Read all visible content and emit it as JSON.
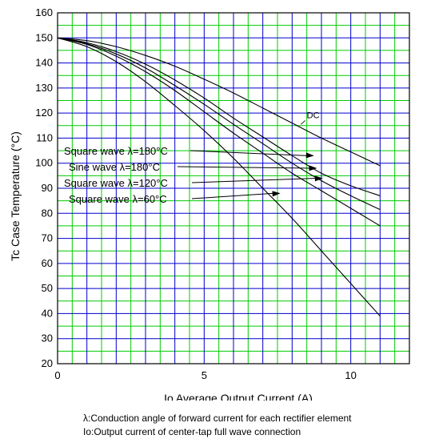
{
  "chart_data": {
    "type": "line",
    "title": "",
    "xlabel": "Io    Average Output Current    (A)",
    "ylabel": "Tc    Case Temperature    (°C)",
    "xlim": [
      0,
      12
    ],
    "ylim": [
      20,
      160
    ],
    "x_ticks": [
      0,
      5,
      10
    ],
    "y_ticks": [
      20,
      30,
      40,
      50,
      60,
      70,
      80,
      90,
      100,
      110,
      120,
      130,
      140,
      150,
      160
    ],
    "grid": {
      "major": true,
      "minor": true,
      "major_color": "#0000cc",
      "minor_color": "#00cc00"
    },
    "series": [
      {
        "name": "DC",
        "x": [
          0,
          1,
          2,
          3,
          4,
          5,
          6,
          7,
          8,
          9,
          10,
          11
        ],
        "y": [
          150,
          148.9,
          146.5,
          143,
          138.7,
          133.5,
          128,
          122,
          116,
          110,
          104.5,
          99
        ]
      },
      {
        "name": "Square wave λ=180°C",
        "x": [
          0,
          1,
          2,
          3,
          4,
          5,
          6,
          7,
          8,
          9,
          10,
          11
        ],
        "y": [
          150,
          148.1,
          144.5,
          139.5,
          133.2,
          126,
          118,
          110.5,
          103,
          96,
          91,
          87
        ]
      },
      {
        "name": "Sine wave λ=180°C",
        "x": [
          0,
          1,
          2,
          3,
          4,
          5,
          6,
          7,
          8,
          9,
          10,
          11
        ],
        "y": [
          150,
          147.7,
          143.6,
          138,
          131,
          123.5,
          115.5,
          107.8,
          100,
          93,
          87,
          81.5
        ]
      },
      {
        "name": "Square wave λ=120°C",
        "x": [
          0,
          1,
          2,
          3,
          4,
          5,
          6,
          7,
          8,
          9,
          10,
          11
        ],
        "y": [
          150,
          147.4,
          142.7,
          136.5,
          129,
          120.5,
          112,
          104,
          96,
          89,
          82,
          75
        ]
      },
      {
        "name": "Square wave λ=60°C",
        "x": [
          0,
          1,
          2,
          3,
          4,
          5,
          6,
          7,
          8,
          9,
          10,
          11
        ],
        "y": [
          150,
          146.5,
          140.5,
          132.5,
          123,
          113,
          102,
          90,
          78,
          65,
          52,
          39
        ]
      }
    ],
    "annotations": [
      {
        "text": "DC",
        "x": 8.5,
        "y": 118
      },
      {
        "text": "Square wave  λ=180°C",
        "arrow_to": [
          8.75,
          103
        ]
      },
      {
        "text": "Sine wave  λ=180°C",
        "arrow_to": [
          8.85,
          98
        ]
      },
      {
        "text": "Square wave  λ=120°C",
        "arrow_to": [
          9.05,
          94
        ]
      },
      {
        "text": "Square wave  λ=60°C",
        "arrow_to": [
          7.6,
          88
        ]
      }
    ]
  },
  "notes": {
    "line1": "λ:Conduction angle of forward current for each rectifier element",
    "line2": "Io:Output current of center-tap full wave connection"
  }
}
